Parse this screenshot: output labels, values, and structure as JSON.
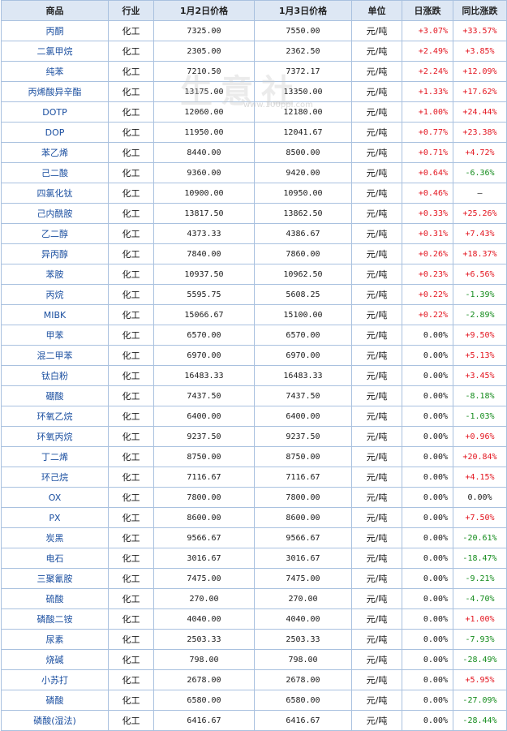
{
  "columns": [
    "商品",
    "行业",
    "1月2日价格",
    "1月3日价格",
    "单位",
    "日涨跌",
    "同比涨跌"
  ],
  "watermark": {
    "text": "生意社",
    "url": "www.100ppi.com"
  },
  "colors": {
    "up": "#e3151f",
    "down": "#138b1b",
    "header_bg": "#dde7f4",
    "border": "#a9c1df",
    "name": "#1b4fa0"
  },
  "rows": [
    {
      "name": "丙酮",
      "industry": "化工",
      "p1": "7325.00",
      "p2": "7550.00",
      "unit": "元/吨",
      "day": "+3.07%",
      "yoy": "+33.57%"
    },
    {
      "name": "二氯甲烷",
      "industry": "化工",
      "p1": "2305.00",
      "p2": "2362.50",
      "unit": "元/吨",
      "day": "+2.49%",
      "yoy": "+3.85%"
    },
    {
      "name": "纯苯",
      "industry": "化工",
      "p1": "7210.50",
      "p2": "7372.17",
      "unit": "元/吨",
      "day": "+2.24%",
      "yoy": "+12.09%"
    },
    {
      "name": "丙烯酸异辛酯",
      "industry": "化工",
      "p1": "13175.00",
      "p2": "13350.00",
      "unit": "元/吨",
      "day": "+1.33%",
      "yoy": "+17.62%"
    },
    {
      "name": "DOTP",
      "industry": "化工",
      "p1": "12060.00",
      "p2": "12180.00",
      "unit": "元/吨",
      "day": "+1.00%",
      "yoy": "+24.44%"
    },
    {
      "name": "DOP",
      "industry": "化工",
      "p1": "11950.00",
      "p2": "12041.67",
      "unit": "元/吨",
      "day": "+0.77%",
      "yoy": "+23.38%"
    },
    {
      "name": "苯乙烯",
      "industry": "化工",
      "p1": "8440.00",
      "p2": "8500.00",
      "unit": "元/吨",
      "day": "+0.71%",
      "yoy": "+4.72%"
    },
    {
      "name": "己二酸",
      "industry": "化工",
      "p1": "9360.00",
      "p2": "9420.00",
      "unit": "元/吨",
      "day": "+0.64%",
      "yoy": "-6.36%"
    },
    {
      "name": "四氯化钛",
      "industry": "化工",
      "p1": "10900.00",
      "p2": "10950.00",
      "unit": "元/吨",
      "day": "+0.46%",
      "yoy": "—"
    },
    {
      "name": "己内酰胺",
      "industry": "化工",
      "p1": "13817.50",
      "p2": "13862.50",
      "unit": "元/吨",
      "day": "+0.33%",
      "yoy": "+25.26%"
    },
    {
      "name": "乙二醇",
      "industry": "化工",
      "p1": "4373.33",
      "p2": "4386.67",
      "unit": "元/吨",
      "day": "+0.31%",
      "yoy": "+7.43%"
    },
    {
      "name": "异丙醇",
      "industry": "化工",
      "p1": "7840.00",
      "p2": "7860.00",
      "unit": "元/吨",
      "day": "+0.26%",
      "yoy": "+18.37%"
    },
    {
      "name": "苯胺",
      "industry": "化工",
      "p1": "10937.50",
      "p2": "10962.50",
      "unit": "元/吨",
      "day": "+0.23%",
      "yoy": "+6.56%"
    },
    {
      "name": "丙烷",
      "industry": "化工",
      "p1": "5595.75",
      "p2": "5608.25",
      "unit": "元/吨",
      "day": "+0.22%",
      "yoy": "-1.39%"
    },
    {
      "name": "MIBK",
      "industry": "化工",
      "p1": "15066.67",
      "p2": "15100.00",
      "unit": "元/吨",
      "day": "+0.22%",
      "yoy": "-2.89%"
    },
    {
      "name": "甲苯",
      "industry": "化工",
      "p1": "6570.00",
      "p2": "6570.00",
      "unit": "元/吨",
      "day": "0.00%",
      "yoy": "+9.50%"
    },
    {
      "name": "混二甲苯",
      "industry": "化工",
      "p1": "6970.00",
      "p2": "6970.00",
      "unit": "元/吨",
      "day": "0.00%",
      "yoy": "+5.13%"
    },
    {
      "name": "钛白粉",
      "industry": "化工",
      "p1": "16483.33",
      "p2": "16483.33",
      "unit": "元/吨",
      "day": "0.00%",
      "yoy": "+3.45%"
    },
    {
      "name": "硼酸",
      "industry": "化工",
      "p1": "7437.50",
      "p2": "7437.50",
      "unit": "元/吨",
      "day": "0.00%",
      "yoy": "-8.18%"
    },
    {
      "name": "环氧乙烷",
      "industry": "化工",
      "p1": "6400.00",
      "p2": "6400.00",
      "unit": "元/吨",
      "day": "0.00%",
      "yoy": "-1.03%"
    },
    {
      "name": "环氧丙烷",
      "industry": "化工",
      "p1": "9237.50",
      "p2": "9237.50",
      "unit": "元/吨",
      "day": "0.00%",
      "yoy": "+0.96%"
    },
    {
      "name": "丁二烯",
      "industry": "化工",
      "p1": "8750.00",
      "p2": "8750.00",
      "unit": "元/吨",
      "day": "0.00%",
      "yoy": "+20.84%"
    },
    {
      "name": "环己烷",
      "industry": "化工",
      "p1": "7116.67",
      "p2": "7116.67",
      "unit": "元/吨",
      "day": "0.00%",
      "yoy": "+4.15%"
    },
    {
      "name": "OX",
      "industry": "化工",
      "p1": "7800.00",
      "p2": "7800.00",
      "unit": "元/吨",
      "day": "0.00%",
      "yoy": "0.00%"
    },
    {
      "name": "PX",
      "industry": "化工",
      "p1": "8600.00",
      "p2": "8600.00",
      "unit": "元/吨",
      "day": "0.00%",
      "yoy": "+7.50%"
    },
    {
      "name": "炭黑",
      "industry": "化工",
      "p1": "9566.67",
      "p2": "9566.67",
      "unit": "元/吨",
      "day": "0.00%",
      "yoy": "-20.61%"
    },
    {
      "name": "电石",
      "industry": "化工",
      "p1": "3016.67",
      "p2": "3016.67",
      "unit": "元/吨",
      "day": "0.00%",
      "yoy": "-18.47%"
    },
    {
      "name": "三聚氰胺",
      "industry": "化工",
      "p1": "7475.00",
      "p2": "7475.00",
      "unit": "元/吨",
      "day": "0.00%",
      "yoy": "-9.21%"
    },
    {
      "name": "硫酸",
      "industry": "化工",
      "p1": "270.00",
      "p2": "270.00",
      "unit": "元/吨",
      "day": "0.00%",
      "yoy": "-4.70%"
    },
    {
      "name": "磷酸二铵",
      "industry": "化工",
      "p1": "4040.00",
      "p2": "4040.00",
      "unit": "元/吨",
      "day": "0.00%",
      "yoy": "+1.00%"
    },
    {
      "name": "尿素",
      "industry": "化工",
      "p1": "2503.33",
      "p2": "2503.33",
      "unit": "元/吨",
      "day": "0.00%",
      "yoy": "-7.93%"
    },
    {
      "name": "烧碱",
      "industry": "化工",
      "p1": "798.00",
      "p2": "798.00",
      "unit": "元/吨",
      "day": "0.00%",
      "yoy": "-28.49%"
    },
    {
      "name": "小苏打",
      "industry": "化工",
      "p1": "2678.00",
      "p2": "2678.00",
      "unit": "元/吨",
      "day": "0.00%",
      "yoy": "+5.95%"
    },
    {
      "name": "磷酸",
      "industry": "化工",
      "p1": "6580.00",
      "p2": "6580.00",
      "unit": "元/吨",
      "day": "0.00%",
      "yoy": "-27.09%"
    },
    {
      "name": "磷酸(湿法)",
      "industry": "化工",
      "p1": "6416.67",
      "p2": "6416.67",
      "unit": "元/吨",
      "day": "0.00%",
      "yoy": "-28.44%"
    }
  ]
}
